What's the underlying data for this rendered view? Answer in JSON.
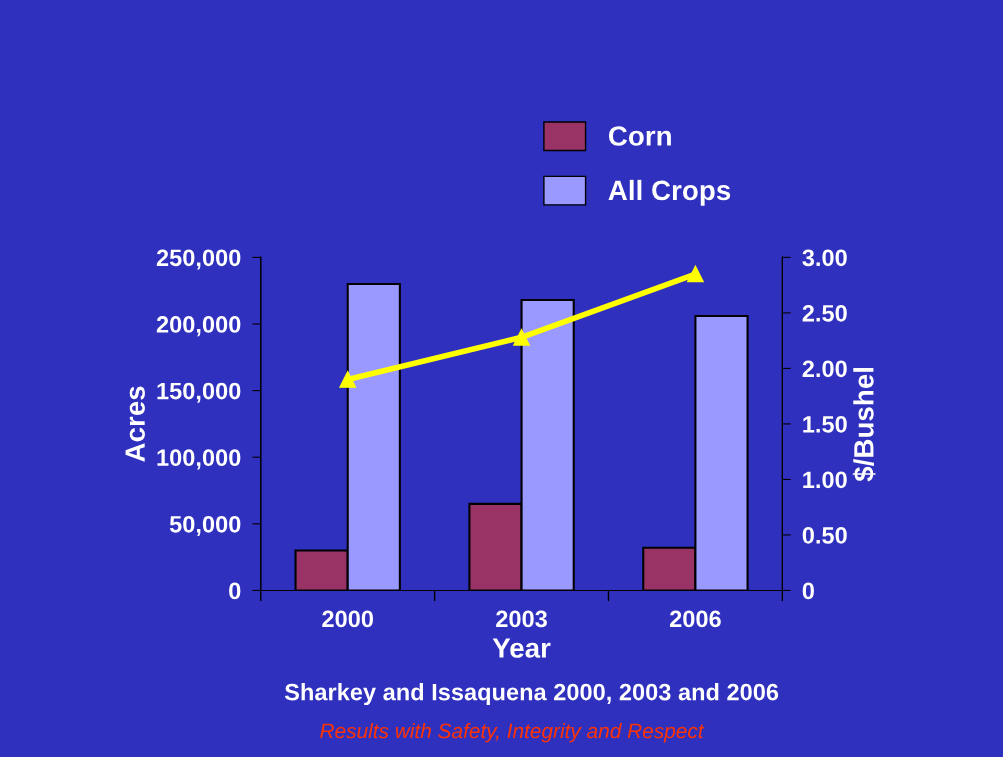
{
  "chart_data": {
    "type": "bar",
    "categories": [
      "2000",
      "2003",
      "2006"
    ],
    "xlabel": "Year",
    "ylabel": "Acres",
    "y2label": "$/Bushel",
    "series": [
      {
        "name": "Corn",
        "color": "#993366",
        "values": [
          30000,
          65000,
          32000
        ]
      },
      {
        "name": "All Crops",
        "color": "#9999ff",
        "values": [
          230000,
          218000,
          206000
        ]
      },
      {
        "type": "line",
        "axis": "y2",
        "color": "#ffff00",
        "marker": "triangle",
        "values": [
          1.9,
          2.28,
          2.85
        ]
      }
    ],
    "ylim": [
      0,
      250000
    ],
    "yticks": [
      {
        "value": 0,
        "label": "0"
      },
      {
        "value": 50000,
        "label": "50,000"
      },
      {
        "value": 100000,
        "label": "100,000"
      },
      {
        "value": 150000,
        "label": "150,000"
      },
      {
        "value": 200000,
        "label": "200,000"
      },
      {
        "value": 250000,
        "label": "250,000"
      }
    ],
    "y2lim": [
      0,
      3
    ],
    "y2ticks": [
      {
        "value": 0,
        "label": "0"
      },
      {
        "value": 0.5,
        "label": "0.50"
      },
      {
        "value": 1,
        "label": "1.00"
      },
      {
        "value": 1.5,
        "label": "1.50"
      },
      {
        "value": 2,
        "label": "2.00"
      },
      {
        "value": 2.5,
        "label": "2.50"
      },
      {
        "value": 3,
        "label": "3.00"
      }
    ],
    "legend": "top right",
    "grid": false,
    "annotations": [
      "Sharkey and Issaquena 2000, 2003 and 2006",
      "Results with Safety, Integrity and Respect"
    ]
  }
}
